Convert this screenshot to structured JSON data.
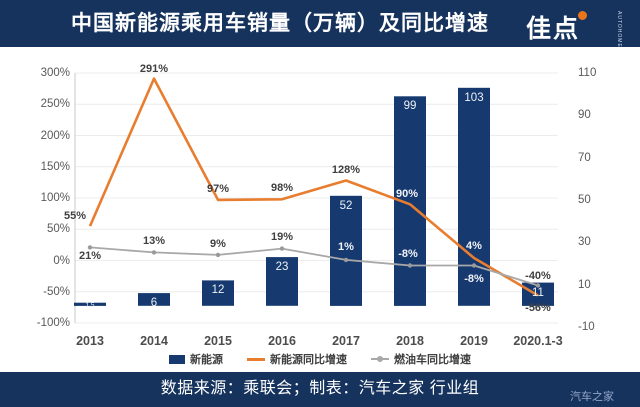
{
  "header": {
    "title": "中国新能源乘用车销量（万辆）及同比增速",
    "logo": {
      "text": "佳点",
      "subtext": "AUTOHOME",
      "dot_color": "#e8751a"
    }
  },
  "footer": {
    "source_text": "数据来源：乘联会；制表：汽车之家 行业组",
    "watermark": "汽车之家"
  },
  "colors": {
    "header_bg": "#16335e",
    "bar": "#163a70",
    "nev_growth_line": "#e87d2f",
    "fuel_growth_line": "#a8a8a8",
    "grid": "#ececec",
    "axis_line": "#c9c9c9",
    "axis_text": "#595959",
    "label_dark": "#3f3f3f",
    "label_light": "#f2f3f7"
  },
  "chart_data": {
    "type": "bar",
    "subtype": "combo-bar-line",
    "title": "中国新能源乘用车销量（万辆）及同比增速",
    "categories": [
      "2013",
      "2014",
      "2015",
      "2016",
      "2017",
      "2018",
      "2019",
      "2020.1-3"
    ],
    "series": [
      {
        "name": "新能源",
        "type": "bar",
        "axis": "right",
        "unit": "万辆",
        "color": "#163a70",
        "values": [
          1.5,
          6,
          12,
          23,
          52,
          99,
          103,
          11
        ],
        "labels": [
          "1.5",
          "6",
          "12",
          "23",
          "52",
          "99",
          "103",
          "11"
        ]
      },
      {
        "name": "新能源同比增速",
        "type": "line",
        "axis": "left",
        "unit": "%",
        "color": "#e87d2f",
        "values": [
          55,
          291,
          97,
          98,
          128,
          90,
          4,
          -56
        ],
        "labels": [
          "55%",
          "291%",
          "97%",
          "98%",
          "128%",
          "90%",
          "4%",
          "-56%"
        ],
        "label_offsets": [
          [
            -15,
            -16
          ],
          [
            0,
            -16
          ],
          [
            0,
            -17
          ],
          [
            0,
            -17
          ],
          [
            0,
            -17
          ],
          [
            -3,
            -16
          ],
          [
            0,
            -18
          ],
          [
            0,
            6
          ]
        ],
        "label_on_bar": [
          false,
          false,
          false,
          false,
          false,
          true,
          true,
          false
        ]
      },
      {
        "name": "燃油车同比增速",
        "type": "line",
        "axis": "left",
        "unit": "%",
        "color": "#a8a8a8",
        "values": [
          21,
          13,
          9,
          19,
          1,
          -8,
          -8,
          -40
        ],
        "labels": [
          "21%",
          "13%",
          "9%",
          "19%",
          "1%",
          "-8%",
          "-8%",
          "-40%"
        ],
        "label_offsets": [
          [
            0,
            3
          ],
          [
            0,
            -17
          ],
          [
            0,
            -17
          ],
          [
            0,
            -18
          ],
          [
            0,
            -19
          ],
          [
            -2,
            -18
          ],
          [
            0,
            7
          ],
          [
            0,
            -16
          ]
        ],
        "label_on_bar": [
          false,
          false,
          false,
          false,
          true,
          true,
          true,
          false
        ]
      }
    ],
    "left_axis": {
      "ticks": [
        "300%",
        "250%",
        "200%",
        "150%",
        "100%",
        "50%",
        "0%",
        "-50%",
        "-100%"
      ],
      "values": [
        300,
        250,
        200,
        150,
        100,
        50,
        0,
        -50,
        -100
      ],
      "range": [
        -100,
        300
      ]
    },
    "right_axis": {
      "ticks": [
        "110",
        "90",
        "70",
        "50",
        "30",
        "10",
        "-10"
      ],
      "values": [
        110,
        90,
        70,
        50,
        30,
        10,
        -10
      ],
      "range": [
        -10,
        110
      ]
    },
    "legend": [
      {
        "label": "新能源",
        "marker": "square",
        "color": "#163a70"
      },
      {
        "label": "新能源同比增速",
        "marker": "line",
        "color": "#e87d2f"
      },
      {
        "label": "燃油车同比增速",
        "marker": "line-dot",
        "color": "#a8a8a8"
      }
    ],
    "grid": true,
    "legend_position": "bottom"
  }
}
